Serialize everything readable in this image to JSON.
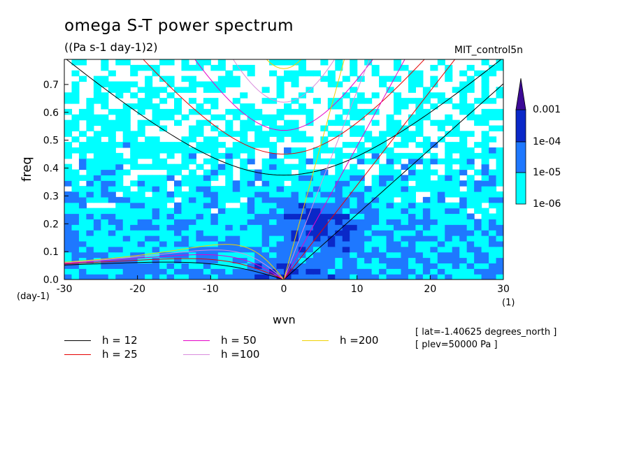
{
  "chart_data": {
    "type": "heatmap",
    "title": "omega S-T power spectrum",
    "units_label": "((Pa s-1 day-1)2)",
    "experiment": "MIT_control5n",
    "xlabel": "wvn",
    "ylabel": "freq",
    "x_unit": "(1)",
    "y_unit": "(day-1)",
    "xlim": [
      -30,
      30
    ],
    "ylim": [
      0,
      0.79
    ],
    "x_ticks": [
      -30,
      -20,
      -10,
      0,
      10,
      20,
      30
    ],
    "x_tick_labels": [
      "-30",
      "-20",
      "-10",
      "0",
      "10",
      "20",
      "30"
    ],
    "y_ticks": [
      0,
      0.1,
      0.2,
      0.3,
      0.4,
      0.5,
      0.6,
      0.7
    ],
    "y_tick_labels": [
      "0.0",
      "0.1",
      "0.2",
      "0.3",
      "0.4",
      "0.5",
      "0.6",
      "0.7"
    ],
    "colorbar": {
      "levels": [
        1e-06,
        1e-05,
        0.0001,
        0.001
      ],
      "level_labels": [
        "1e-06",
        "1e-05",
        "1e-04",
        "0.001"
      ],
      "colors": [
        "#ffffff",
        "#00ffff",
        "#1e78ff",
        "#0a28c8",
        "#3c0a96"
      ]
    },
    "dispersion_curves": [
      {
        "label": "h = 12",
        "h": 12,
        "color": "#000000"
      },
      {
        "label": "h = 25",
        "h": 25,
        "color": "#e60000"
      },
      {
        "label": "h = 50",
        "h": 50,
        "color": "#e600c8"
      },
      {
        "label": "h =100",
        "h": 100,
        "color": "#d98cdc"
      },
      {
        "label": "h =200",
        "h": 200,
        "color": "#f0d200"
      }
    ],
    "annotations": [
      "[ lat=-1.40625 degrees_north ]",
      "[ plev=50000 Pa ]"
    ]
  }
}
